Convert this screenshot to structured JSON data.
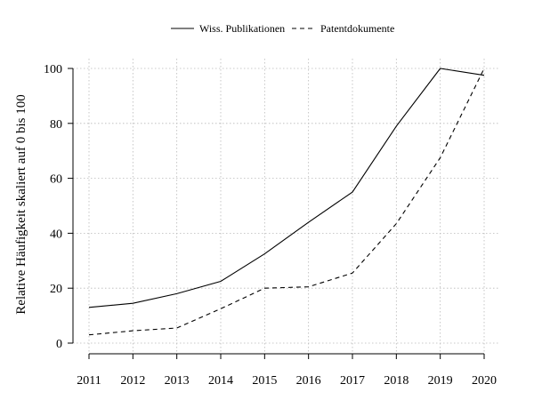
{
  "chart_data": {
    "type": "line",
    "x": [
      2011,
      2012,
      2013,
      2014,
      2015,
      2016,
      2017,
      2018,
      2019,
      2020
    ],
    "categories": [
      "2011",
      "2012",
      "2013",
      "2014",
      "2015",
      "2016",
      "2017",
      "2018",
      "2019",
      "2020"
    ],
    "series": [
      {
        "name": "Wiss. Publikationen",
        "style": "solid",
        "color": "#000000",
        "values": [
          13,
          14.5,
          18,
          22.5,
          32.5,
          44,
          55,
          79,
          100,
          97.5
        ]
      },
      {
        "name": "Patentdokumente",
        "style": "dashed",
        "color": "#000000",
        "values": [
          3,
          4.5,
          5.5,
          12.5,
          20,
          20.5,
          25.5,
          43.5,
          67.5,
          100
        ]
      }
    ],
    "title": "",
    "xlabel": "",
    "ylabel": "Relative Häufigkeit skaliert auf 0 bis 100",
    "ylim": [
      0,
      100
    ],
    "yticks": [
      "0",
      "20",
      "40",
      "60",
      "80",
      "100"
    ],
    "grid": true,
    "legend_position": "top-center"
  }
}
